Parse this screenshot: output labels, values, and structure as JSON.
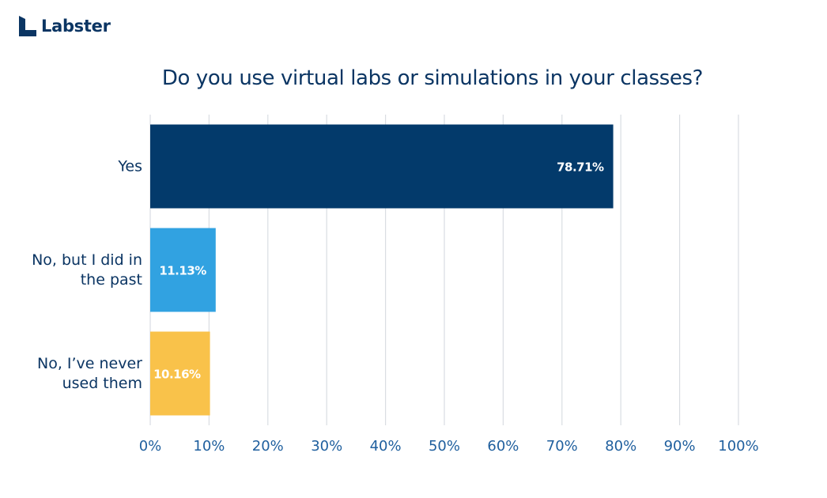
{
  "brand": {
    "name": "Labster",
    "color": "#0b3563"
  },
  "chart_data": {
    "type": "bar",
    "orientation": "horizontal",
    "title": "Do you use virtual labs or simulations in your classes?",
    "categories": [
      [
        "Yes"
      ],
      [
        "No, but I did in",
        "the past"
      ],
      [
        "No, I’ve never",
        "used them"
      ]
    ],
    "values": [
      78.71,
      11.13,
      10.16
    ],
    "data_labels": [
      "78.71%",
      "11.13%",
      "10.16%"
    ],
    "colors": [
      "#033a6b",
      "#31a2e1",
      "#f9c24a"
    ],
    "xlim": [
      0,
      100
    ],
    "x_ticks": [
      0,
      10,
      20,
      30,
      40,
      50,
      60,
      70,
      80,
      90,
      100
    ],
    "x_tick_labels": [
      "0%",
      "10%",
      "20%",
      "30%",
      "40%",
      "50%",
      "60%",
      "70%",
      "80%",
      "90%",
      "100%"
    ],
    "xlabel": "",
    "ylabel": "",
    "grid": "vertical",
    "legend": "none"
  }
}
